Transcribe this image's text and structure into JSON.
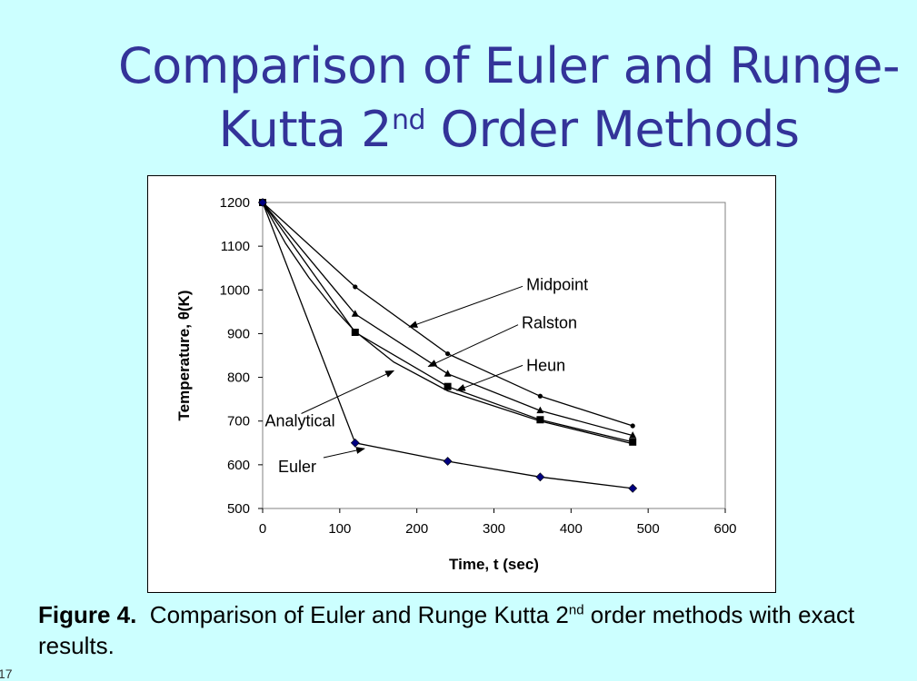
{
  "slide": {
    "title_line1": "Comparison of Euler and Runge-",
    "title_line2_pre": "Kutta 2",
    "title_sup": "nd",
    "title_line2_post": " Order Methods",
    "caption_label": "Figure 4.",
    "caption_pre": "  Comparison of Euler and Runge Kutta 2",
    "caption_sup": "nd",
    "caption_post": " order methods with exact results.",
    "slide_number": "17"
  },
  "chart_data": {
    "type": "line",
    "title": "",
    "xlabel": "Time, t (sec)",
    "ylabel": "Temperature, θ(K)",
    "xlim": [
      0,
      600
    ],
    "ylim": [
      500,
      1200
    ],
    "xticks": [
      0,
      100,
      200,
      300,
      400,
      500,
      600
    ],
    "yticks": [
      500,
      600,
      700,
      800,
      900,
      1000,
      1100,
      1200
    ],
    "grid": false,
    "series": [
      {
        "name": "Midpoint",
        "x": [
          0,
          120,
          240,
          360,
          480
        ],
        "y": [
          1200,
          1007,
          854,
          757,
          689
        ],
        "marker": "dot",
        "color": "#000000"
      },
      {
        "name": "Ralston",
        "x": [
          0,
          120,
          240,
          360,
          480
        ],
        "y": [
          1200,
          945,
          808,
          724,
          667
        ],
        "marker": "triangle",
        "color": "#000000"
      },
      {
        "name": "Heun",
        "x": [
          0,
          120,
          240,
          360,
          480
        ],
        "y": [
          1200,
          903,
          779,
          703,
          652
        ],
        "marker": "square",
        "color": "#000000"
      },
      {
        "name": "Analytical",
        "x": [
          0,
          30,
          60,
          90,
          120,
          170,
          240,
          360,
          480
        ],
        "y": [
          1200,
          1106,
          1028,
          962,
          905,
          835,
          769,
          700,
          648
        ],
        "marker": "none",
        "color": "#000000"
      },
      {
        "name": "Euler",
        "x": [
          0,
          120,
          240,
          360,
          480
        ],
        "y": [
          1200,
          650,
          608,
          572,
          546
        ],
        "marker": "diamond",
        "color": "#000080"
      }
    ],
    "annotations": [
      {
        "text": "Midpoint",
        "label_at": [
          342,
          1000
        ],
        "arrow_to": [
          190,
          915
        ]
      },
      {
        "text": "Ralston",
        "label_at": [
          336,
          912
        ],
        "arrow_to": [
          215,
          825
        ]
      },
      {
        "text": "Heun",
        "label_at": [
          342,
          815
        ],
        "arrow_to": [
          252,
          770
        ]
      },
      {
        "text": "Analytical",
        "label_at": [
          3,
          688
        ],
        "arrow_to": [
          170,
          815
        ]
      },
      {
        "text": "Euler",
        "label_at": [
          20,
          583
        ],
        "arrow_to": [
          132,
          637
        ]
      }
    ]
  }
}
